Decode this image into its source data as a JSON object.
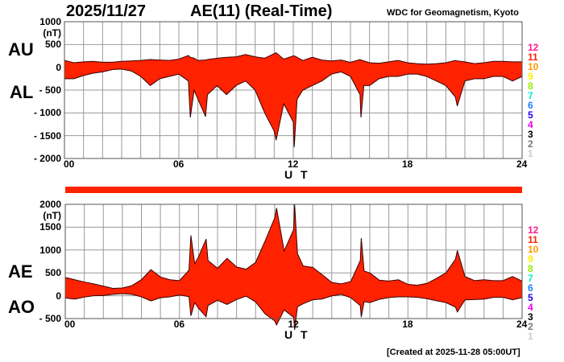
{
  "header": {
    "date": "2025/11/27",
    "title": "AE(11) (Real-Time)",
    "credit": "WDC for Geomagnetism, Kyoto"
  },
  "footer": {
    "created": "[Created at 2025-11-28 05:00UT]"
  },
  "legend": {
    "stations": [
      {
        "label": "12",
        "color": "#ff1a8c"
      },
      {
        "label": "11",
        "color": "#ff2200"
      },
      {
        "label": "10",
        "color": "#ff9900"
      },
      {
        "label": "9",
        "color": "#ffee00"
      },
      {
        "label": "8",
        "color": "#99ee00"
      },
      {
        "label": "7",
        "color": "#00eecc"
      },
      {
        "label": "6",
        "color": "#1e7fff"
      },
      {
        "label": "5",
        "color": "#2200ee"
      },
      {
        "label": "4",
        "color": "#ee00ee"
      },
      {
        "label": "3",
        "color": "#000000"
      },
      {
        "label": "2",
        "color": "#777777"
      },
      {
        "label": "1",
        "color": "#cccccc"
      }
    ]
  },
  "chart_data": [
    {
      "type": "area",
      "panel": "top",
      "series_labels": [
        "AU",
        "AL"
      ],
      "unit": "(nT)",
      "xlabel": "U T",
      "xlim": [
        0,
        24
      ],
      "ylim": [
        -2000,
        1000
      ],
      "xticks": [
        "00",
        "06",
        "12",
        "18",
        "24"
      ],
      "yticks": [
        "1000",
        "500",
        "0",
        "- 500",
        "- 1000",
        "- 1500",
        "- 2000"
      ],
      "fill_color": "#ff2200",
      "grid": true,
      "columns": [
        "hour_UT",
        "AU_nT",
        "AL_nT"
      ],
      "records": [
        [
          0,
          150,
          -250
        ],
        [
          0.5,
          100,
          -250
        ],
        [
          1,
          120,
          -180
        ],
        [
          1.5,
          130,
          -130
        ],
        [
          2,
          110,
          -100
        ],
        [
          2.5,
          110,
          -50
        ],
        [
          3,
          130,
          -40
        ],
        [
          3.5,
          140,
          -80
        ],
        [
          4,
          150,
          -200
        ],
        [
          4.5,
          170,
          -400
        ],
        [
          5,
          160,
          -250
        ],
        [
          5.5,
          150,
          -200
        ],
        [
          6,
          180,
          -150
        ],
        [
          6.5,
          260,
          -300
        ],
        [
          6.6,
          220,
          -1100
        ],
        [
          6.8,
          200,
          -500
        ],
        [
          7,
          150,
          -700
        ],
        [
          7.4,
          160,
          -1080
        ],
        [
          7.5,
          170,
          -600
        ],
        [
          8,
          200,
          -400
        ],
        [
          8.5,
          220,
          -600
        ],
        [
          9,
          230,
          -400
        ],
        [
          9.5,
          280,
          -300
        ],
        [
          10,
          230,
          -500
        ],
        [
          10.5,
          200,
          -1000
        ],
        [
          11,
          300,
          -1400
        ],
        [
          11.1,
          320,
          -1600
        ],
        [
          11.5,
          180,
          -800
        ],
        [
          12,
          250,
          -1200
        ],
        [
          12.05,
          250,
          -1750
        ],
        [
          12.2,
          220,
          -700
        ],
        [
          12.5,
          150,
          -500
        ],
        [
          13,
          220,
          -400
        ],
        [
          13.5,
          160,
          -300
        ],
        [
          14,
          140,
          -150
        ],
        [
          14.5,
          160,
          -100
        ],
        [
          15,
          110,
          -200
        ],
        [
          15.5,
          170,
          -600
        ],
        [
          15.55,
          160,
          -1100
        ],
        [
          15.7,
          140,
          -400
        ],
        [
          16,
          100,
          -400
        ],
        [
          16.5,
          90,
          -250
        ],
        [
          17,
          120,
          -200
        ],
        [
          17.5,
          150,
          -200
        ],
        [
          18,
          100,
          -150
        ],
        [
          18.5,
          80,
          -150
        ],
        [
          19,
          70,
          -200
        ],
        [
          19.5,
          80,
          -300
        ],
        [
          20,
          100,
          -400
        ],
        [
          20.5,
          150,
          -650
        ],
        [
          20.6,
          140,
          -850
        ],
        [
          21,
          120,
          -300
        ],
        [
          21.5,
          80,
          -250
        ],
        [
          22,
          100,
          -250
        ],
        [
          22.5,
          130,
          -200
        ],
        [
          23,
          130,
          -200
        ],
        [
          23.5,
          120,
          -300
        ],
        [
          24,
          120,
          -200
        ]
      ]
    },
    {
      "type": "area",
      "panel": "bottom",
      "series_labels": [
        "AE",
        "AO"
      ],
      "unit": "(nT)",
      "xlabel": "U T",
      "xlim": [
        0,
        24
      ],
      "ylim": [
        -500,
        2000
      ],
      "xticks": [
        "00",
        "06",
        "12",
        "18",
        "24"
      ],
      "yticks": [
        "2000",
        "1500",
        "1000",
        "500",
        "0",
        "- 500"
      ],
      "fill_color": "#ff2200",
      "grid": true,
      "derived_from": "AE = AU - AL, AO = (AU + AL) / 2"
    }
  ]
}
